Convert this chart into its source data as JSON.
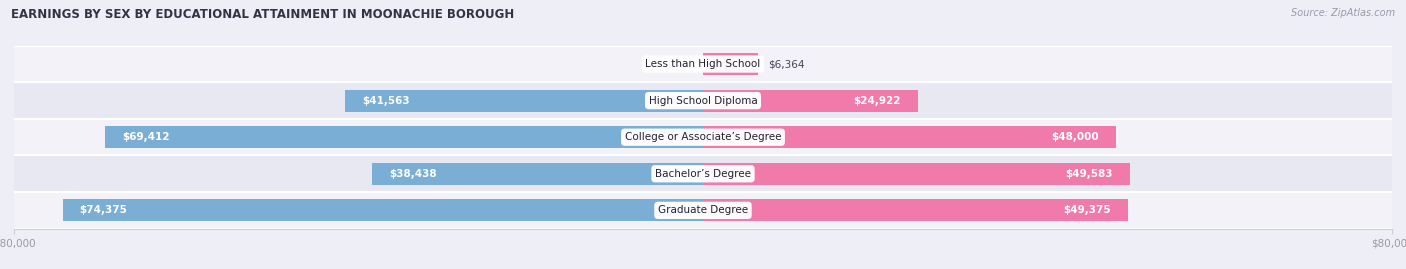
{
  "title": "EARNINGS BY SEX BY EDUCATIONAL ATTAINMENT IN MOONACHIE BOROUGH",
  "source": "Source: ZipAtlas.com",
  "categories": [
    "Less than High School",
    "High School Diploma",
    "College or Associate’s Degree",
    "Bachelor’s Degree",
    "Graduate Degree"
  ],
  "male_values": [
    0,
    41563,
    69412,
    38438,
    74375
  ],
  "female_values": [
    6364,
    24922,
    48000,
    49583,
    49375
  ],
  "max_val": 80000,
  "male_color": "#7aaed4",
  "female_color": "#f07aaa",
  "row_bg_colors": [
    "#f2f2f8",
    "#e8e8f2"
  ],
  "title_color": "#333344",
  "axis_label_color": "#999aaa",
  "background_color": "#eeeef6",
  "label_dark": "#444455",
  "label_white": "#ffffff",
  "inner_threshold": 12000
}
